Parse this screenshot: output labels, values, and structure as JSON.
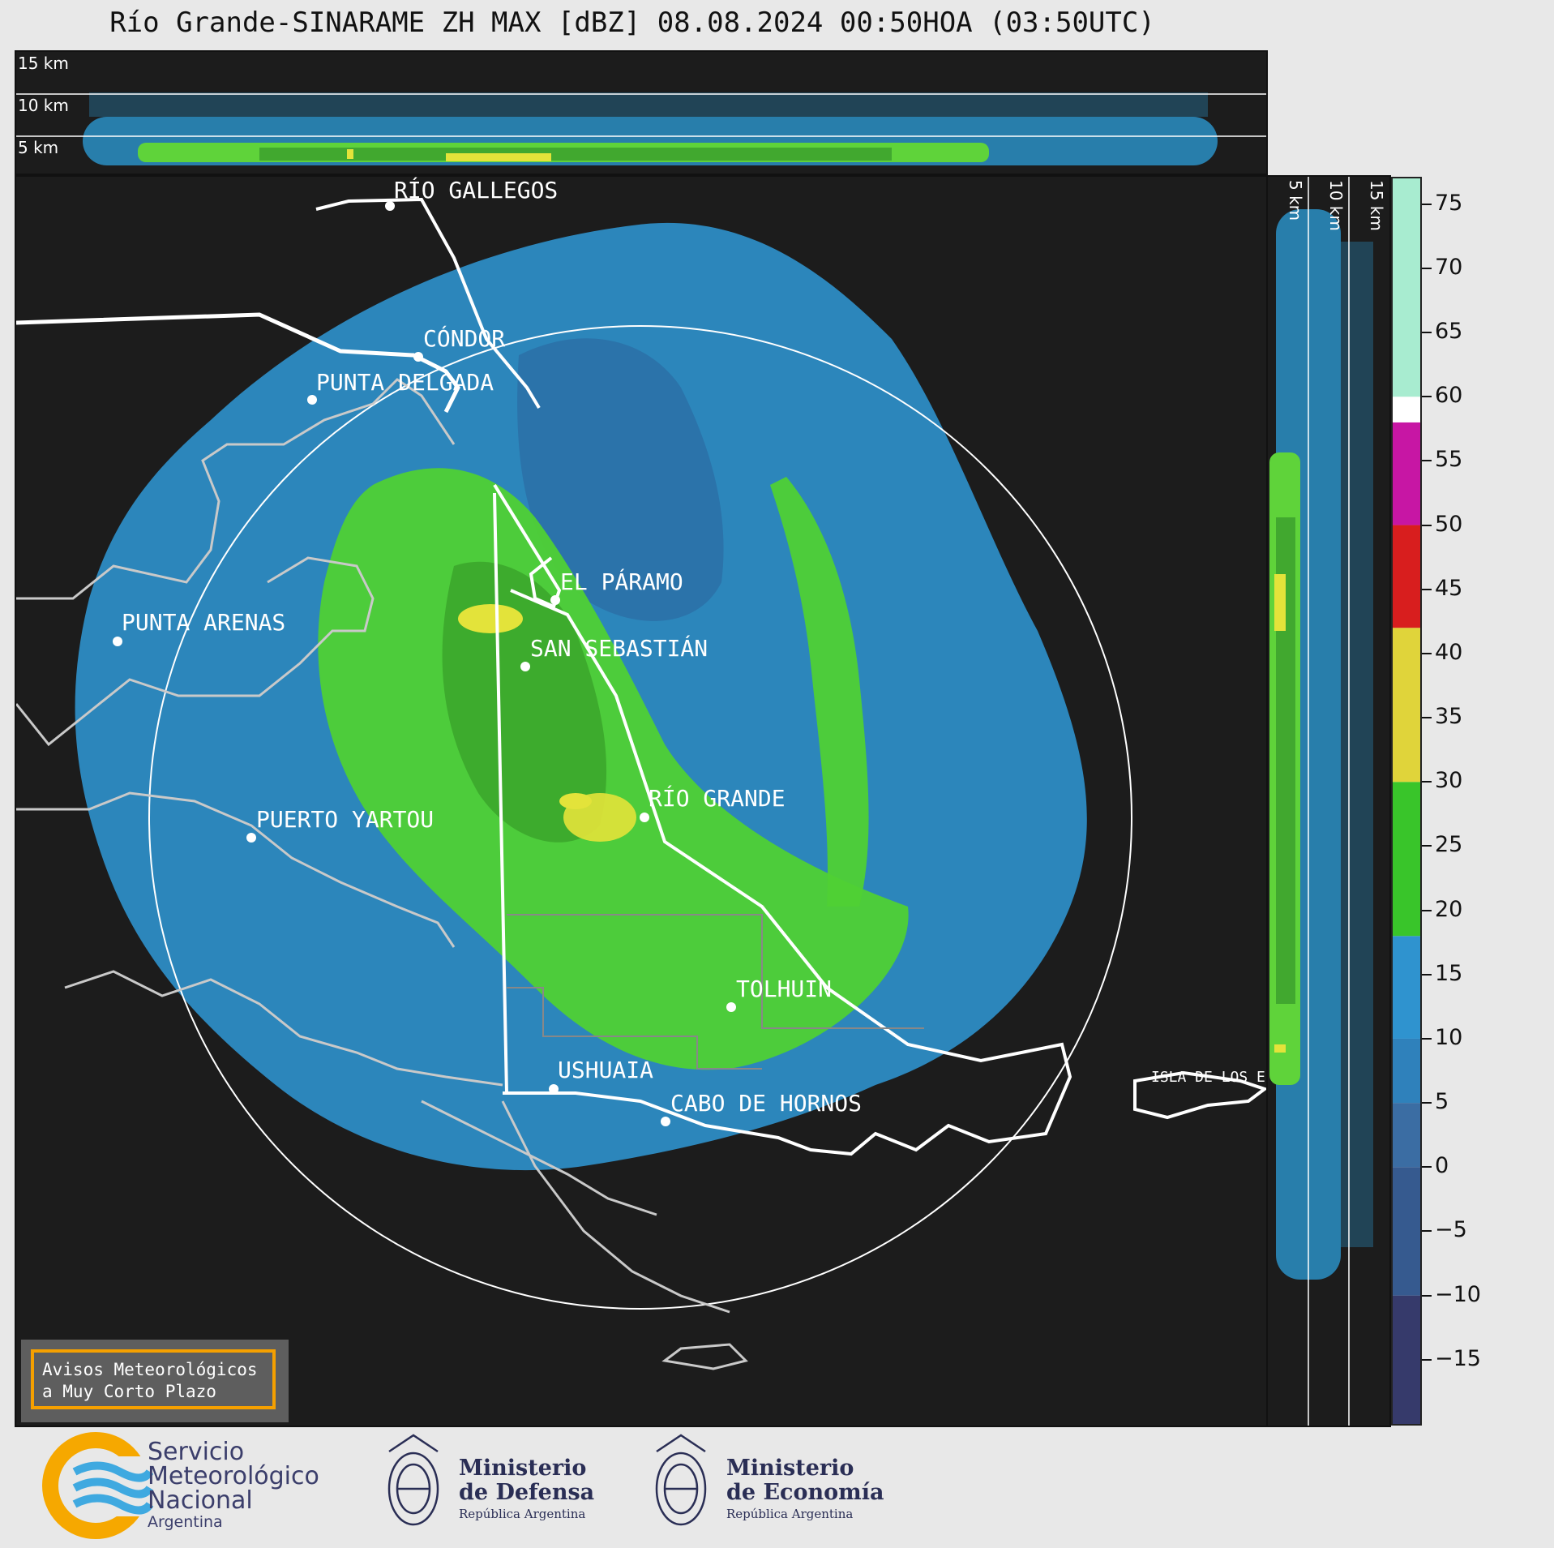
{
  "title": "Río Grande-SINARAME ZH MAX [dBZ] 08.08.2024 00:50HOA (03:50UTC)",
  "altitude_labels": [
    "15 km",
    "10 km",
    "5 km"
  ],
  "side_altitude_labels": [
    "5 km",
    "10 km",
    "15 km"
  ],
  "colorbar": {
    "ticks": [
      "75",
      "70",
      "65",
      "60",
      "55",
      "50",
      "45",
      "40",
      "35",
      "30",
      "25",
      "20",
      "15",
      "10",
      "5",
      "0",
      "−5",
      "−10",
      "−15"
    ],
    "tick_values": [
      75,
      70,
      65,
      60,
      55,
      50,
      45,
      40,
      35,
      30,
      25,
      20,
      15,
      10,
      5,
      0,
      -5,
      -10,
      -15
    ],
    "range": [
      -20,
      77
    ]
  },
  "cities": [
    {
      "name": "RÍO GALLEGOS"
    },
    {
      "name": "CÓNDOR"
    },
    {
      "name": "PUNTA DELGADA"
    },
    {
      "name": "EL PÁRAMO"
    },
    {
      "name": "PUNTA ARENAS"
    },
    {
      "name": "SAN SEBASTIÁN"
    },
    {
      "name": "RÍO GRANDE"
    },
    {
      "name": "PUERTO YARTOU"
    },
    {
      "name": "TOLHUIN"
    },
    {
      "name": "USHUAIA"
    },
    {
      "name": "CABO DE HORNOS"
    },
    {
      "name": "ISLA DE LOS ESTADOS"
    }
  ],
  "warning": {
    "line1": "Avisos Meteorológicos",
    "line2": "a Muy Corto Plazo"
  },
  "logos": {
    "smn": {
      "line1": "Servicio",
      "line2": "Meteorológico",
      "line3": "Nacional",
      "line4": "Argentina"
    },
    "defensa": {
      "line1": "Ministerio",
      "line2": "de Defensa",
      "line3": "República Argentina"
    },
    "economia": {
      "line1": "Ministerio",
      "line2": "de Economía",
      "line3": "República Argentina"
    }
  },
  "colors": {
    "background": "#1c1c1c",
    "accent_orange": "#f5a000",
    "page": "#e8e8e8"
  }
}
